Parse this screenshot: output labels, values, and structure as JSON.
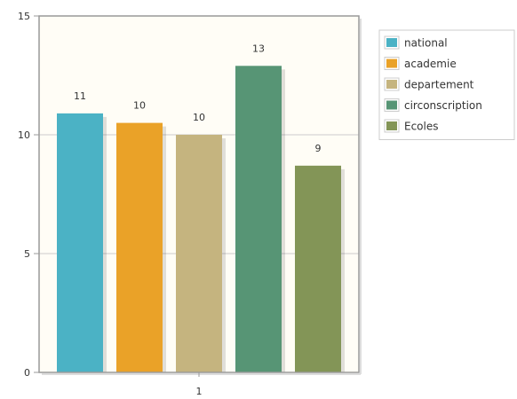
{
  "chart_data": {
    "type": "bar",
    "categories": [
      "1"
    ],
    "ylim": [
      0,
      15
    ],
    "yticks": [
      0,
      5,
      10,
      15
    ],
    "grid": true,
    "legend_position": "top-right",
    "series": [
      {
        "name": "national",
        "values": [
          10.9
        ],
        "label": "11",
        "color": "#4bb2c5"
      },
      {
        "name": "academie",
        "values": [
          10.5
        ],
        "label": "10",
        "color": "#eaa228"
      },
      {
        "name": "departement",
        "values": [
          10.0
        ],
        "label": "10",
        "color": "#c5b47f"
      },
      {
        "name": "circonscription",
        "values": [
          12.9
        ],
        "label": "13",
        "color": "#579575"
      },
      {
        "name": "Ecoles",
        "values": [
          8.7
        ],
        "label": "9",
        "color": "#839557"
      }
    ],
    "plot_background": "#fffdf6"
  }
}
